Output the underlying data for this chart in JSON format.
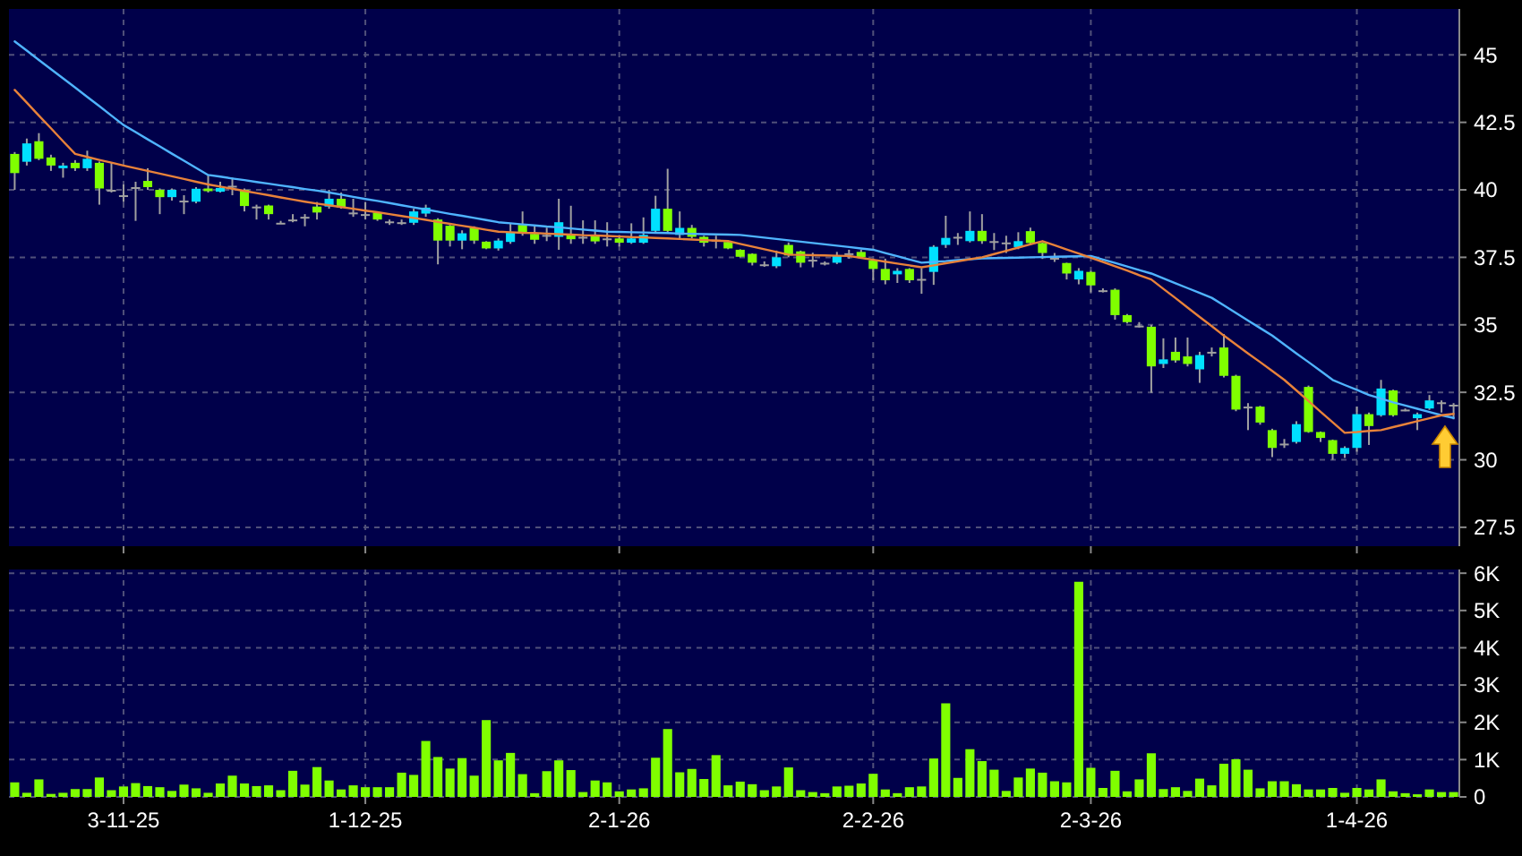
{
  "chart_data": [
    {
      "type": "candlestick",
      "tick_labels": "y",
      "grid": true,
      "ylim": [
        26.8,
        46.7
      ],
      "yticks": [
        27.5,
        30,
        32.5,
        35,
        37.5,
        40,
        42.5,
        45
      ],
      "categories": [
        null,
        null,
        null,
        null,
        null,
        null,
        null,
        null,
        null,
        null,
        null,
        null,
        null,
        null,
        null,
        null,
        null,
        null,
        null,
        null,
        null,
        null,
        null,
        null,
        null,
        null,
        null,
        null,
        null,
        null,
        null,
        null,
        null,
        null,
        null,
        null,
        null,
        null,
        null,
        null,
        null,
        null,
        null,
        null,
        null,
        null,
        null,
        null,
        null,
        null,
        null,
        null,
        null,
        null,
        null,
        null,
        null,
        null,
        null,
        null,
        null,
        null,
        null,
        null,
        null,
        null,
        null,
        null,
        null,
        null,
        null,
        null,
        null,
        null,
        null,
        null,
        null,
        null,
        null,
        null,
        null,
        null,
        null,
        null,
        null,
        null,
        null,
        null,
        null,
        null,
        null,
        null,
        null,
        null,
        null,
        null,
        null,
        null,
        null,
        null,
        null,
        null,
        null,
        null,
        null,
        null,
        null,
        null,
        null,
        null,
        null,
        null,
        null,
        null,
        null,
        null,
        null,
        null,
        null,
        null
      ],
      "ohlc": [
        [
          41.33,
          41.4,
          40.0,
          40.62
        ],
        [
          41.04,
          41.9,
          40.9,
          41.72
        ],
        [
          41.8,
          42.1,
          41.1,
          41.15
        ],
        [
          41.2,
          41.3,
          40.7,
          40.9
        ],
        [
          40.8,
          41.0,
          40.45,
          40.9
        ],
        [
          41.0,
          41.1,
          40.7,
          40.8
        ],
        [
          40.8,
          41.45,
          40.7,
          41.15
        ],
        [
          41.0,
          41.05,
          39.45,
          40.05
        ],
        [
          40.0,
          41.0,
          39.9,
          40.0
        ],
        [
          39.8,
          40.2,
          39.55,
          39.8
        ],
        [
          40.1,
          40.3,
          38.85,
          40.1
        ],
        [
          40.33,
          40.8,
          40.0,
          40.1
        ],
        [
          40.0,
          40.05,
          39.1,
          39.73
        ],
        [
          39.73,
          40.05,
          39.6,
          40.0
        ],
        [
          39.6,
          39.8,
          39.1,
          39.6
        ],
        [
          39.56,
          40.1,
          39.5,
          40.04
        ],
        [
          40.05,
          40.55,
          39.9,
          39.95
        ],
        [
          39.93,
          40.3,
          39.9,
          40.07
        ],
        [
          40.15,
          40.45,
          39.8,
          40.15
        ],
        [
          40.0,
          40.05,
          39.2,
          39.4
        ],
        [
          39.38,
          39.45,
          38.9,
          39.38
        ],
        [
          39.42,
          39.45,
          38.9,
          39.1
        ],
        [
          38.78,
          38.85,
          38.75,
          38.78
        ],
        [
          38.9,
          39.1,
          38.8,
          38.9
        ],
        [
          39.0,
          39.1,
          38.65,
          39.0
        ],
        [
          39.38,
          39.55,
          38.9,
          39.16
        ],
        [
          39.38,
          40.0,
          39.3,
          39.67
        ],
        [
          39.67,
          39.9,
          39.3,
          39.34
        ],
        [
          39.16,
          39.67,
          39.0,
          39.16
        ],
        [
          39.1,
          39.55,
          38.9,
          39.1
        ],
        [
          39.16,
          39.2,
          38.85,
          38.9
        ],
        [
          38.83,
          38.9,
          38.7,
          38.83
        ],
        [
          38.8,
          38.9,
          38.7,
          38.8
        ],
        [
          38.78,
          39.3,
          38.7,
          39.2
        ],
        [
          39.12,
          39.45,
          39.0,
          39.34
        ],
        [
          38.9,
          38.95,
          37.24,
          38.12
        ],
        [
          38.67,
          38.7,
          37.9,
          38.12
        ],
        [
          38.12,
          38.5,
          37.8,
          38.39
        ],
        [
          38.6,
          38.65,
          38.0,
          38.12
        ],
        [
          38.08,
          38.1,
          37.8,
          37.83
        ],
        [
          37.83,
          38.2,
          37.75,
          38.12
        ],
        [
          38.07,
          38.76,
          38.0,
          38.43
        ],
        [
          38.7,
          39.2,
          38.3,
          38.43
        ],
        [
          38.37,
          38.65,
          38.0,
          38.15
        ],
        [
          38.33,
          38.6,
          38.1,
          38.33
        ],
        [
          38.26,
          39.67,
          37.78,
          38.8
        ],
        [
          38.33,
          39.41,
          38.0,
          38.17
        ],
        [
          38.26,
          38.87,
          38.0,
          38.26
        ],
        [
          38.28,
          38.87,
          38.0,
          38.09
        ],
        [
          38.2,
          38.8,
          37.9,
          38.2
        ],
        [
          38.2,
          38.3,
          37.9,
          38.04
        ],
        [
          38.04,
          38.76,
          38.0,
          38.2
        ],
        [
          38.04,
          38.98,
          38.0,
          38.33
        ],
        [
          38.48,
          39.78,
          38.4,
          39.3
        ],
        [
          39.3,
          40.78,
          38.4,
          38.48
        ],
        [
          38.33,
          39.2,
          38.2,
          38.59
        ],
        [
          38.59,
          38.7,
          38.2,
          38.26
        ],
        [
          38.26,
          38.3,
          37.9,
          38.04
        ],
        [
          38.15,
          38.3,
          37.83,
          38.15
        ],
        [
          38.07,
          38.1,
          37.8,
          37.83
        ],
        [
          37.78,
          37.8,
          37.5,
          37.52
        ],
        [
          37.63,
          37.65,
          37.2,
          37.3
        ],
        [
          37.24,
          37.35,
          37.15,
          37.24
        ],
        [
          37.17,
          37.75,
          37.1,
          37.5
        ],
        [
          37.96,
          38.05,
          37.5,
          37.57
        ],
        [
          37.72,
          37.75,
          37.13,
          37.3
        ],
        [
          37.41,
          37.67,
          37.13,
          37.41
        ],
        [
          37.3,
          37.35,
          37.2,
          37.3
        ],
        [
          37.3,
          37.7,
          37.25,
          37.57
        ],
        [
          37.65,
          37.78,
          37.45,
          37.65
        ],
        [
          37.7,
          37.78,
          37.45,
          37.5
        ],
        [
          37.39,
          37.45,
          36.65,
          37.07
        ],
        [
          37.07,
          37.45,
          36.5,
          36.65
        ],
        [
          36.87,
          37.1,
          36.55,
          37.0
        ],
        [
          37.07,
          37.1,
          36.55,
          36.65
        ],
        [
          36.7,
          37.1,
          36.15,
          36.7
        ],
        [
          36.96,
          37.95,
          36.48,
          37.89
        ],
        [
          37.96,
          39.04,
          37.85,
          38.22
        ],
        [
          38.26,
          38.4,
          37.96,
          38.26
        ],
        [
          38.1,
          39.2,
          38.05,
          38.48
        ],
        [
          38.48,
          39.1,
          38.0,
          38.1
        ],
        [
          38.1,
          38.4,
          37.77,
          38.1
        ],
        [
          38.05,
          38.3,
          37.66,
          38.05
        ],
        [
          37.88,
          38.43,
          37.8,
          38.1
        ],
        [
          38.47,
          38.6,
          37.95,
          38.03
        ],
        [
          38.03,
          38.05,
          37.44,
          37.66
        ],
        [
          37.48,
          37.66,
          37.33,
          37.48
        ],
        [
          37.29,
          37.3,
          36.68,
          36.9
        ],
        [
          36.68,
          37.1,
          36.5,
          37.0
        ],
        [
          36.96,
          37.0,
          36.2,
          36.46
        ],
        [
          36.28,
          36.35,
          36.2,
          36.28
        ],
        [
          36.3,
          36.35,
          35.19,
          35.36
        ],
        [
          35.36,
          35.4,
          35.05,
          35.1
        ],
        [
          34.97,
          35.1,
          34.9,
          34.97
        ],
        [
          34.93,
          35.0,
          32.48,
          33.46
        ],
        [
          33.55,
          34.5,
          33.4,
          33.72
        ],
        [
          34.0,
          34.53,
          33.6,
          33.68
        ],
        [
          33.83,
          34.53,
          33.46,
          33.55
        ],
        [
          33.35,
          34.0,
          32.85,
          33.88
        ],
        [
          34.0,
          34.16,
          33.83,
          34.0
        ],
        [
          34.16,
          34.66,
          33.05,
          33.11
        ],
        [
          33.11,
          33.15,
          31.8,
          31.86
        ],
        [
          31.97,
          32.1,
          31.1,
          31.97
        ],
        [
          31.97,
          32.0,
          31.3,
          31.38
        ],
        [
          31.1,
          31.15,
          30.1,
          30.44
        ],
        [
          30.6,
          30.77,
          30.44,
          30.6
        ],
        [
          30.66,
          31.43,
          30.6,
          31.32
        ],
        [
          32.7,
          32.75,
          31.0,
          31.03
        ],
        [
          31.03,
          31.05,
          30.66,
          30.81
        ],
        [
          30.73,
          30.75,
          30.0,
          30.22
        ],
        [
          30.22,
          30.5,
          30.07,
          30.44
        ],
        [
          30.44,
          31.97,
          30.3,
          31.69
        ],
        [
          31.69,
          31.75,
          30.55,
          31.25
        ],
        [
          31.65,
          32.96,
          31.6,
          32.64
        ],
        [
          32.57,
          32.6,
          31.6,
          31.65
        ],
        [
          31.86,
          31.9,
          31.8,
          31.86
        ],
        [
          31.54,
          31.75,
          31.1,
          31.69
        ],
        [
          31.9,
          32.4,
          31.85,
          32.2
        ],
        [
          32.13,
          32.2,
          31.75,
          32.13
        ],
        [
          32.04,
          32.1,
          31.5,
          32.04
        ]
      ],
      "colors": [
        "#80ff00",
        "#00e0ff",
        "#80ff00",
        "#80ff00",
        "#00e0ff",
        "#80ff00",
        "#00e0ff",
        "#80ff00",
        "#a0a0a0",
        "#a0a0a0",
        "#a0a0a0",
        "#80ff00",
        "#80ff00",
        "#00e0ff",
        "#a0a0a0",
        "#00e0ff",
        "#80ff00",
        "#00e0ff",
        "#a0a0a0",
        "#80ff00",
        "#a0a0a0",
        "#80ff00",
        "#a0a0a0",
        "#a0a0a0",
        "#a0a0a0",
        "#80ff00",
        "#00e0ff",
        "#80ff00",
        "#a0a0a0",
        "#a0a0a0",
        "#80ff00",
        "#a0a0a0",
        "#a0a0a0",
        "#00e0ff",
        "#00e0ff",
        "#80ff00",
        "#80ff00",
        "#00e0ff",
        "#80ff00",
        "#80ff00",
        "#00e0ff",
        "#00e0ff",
        "#80ff00",
        "#80ff00",
        "#a0a0a0",
        "#00e0ff",
        "#80ff00",
        "#a0a0a0",
        "#80ff00",
        "#a0a0a0",
        "#80ff00",
        "#00e0ff",
        "#00e0ff",
        "#00e0ff",
        "#80ff00",
        "#00e0ff",
        "#80ff00",
        "#80ff00",
        "#a0a0a0",
        "#80ff00",
        "#80ff00",
        "#80ff00",
        "#a0a0a0",
        "#00e0ff",
        "#80ff00",
        "#80ff00",
        "#a0a0a0",
        "#a0a0a0",
        "#00e0ff",
        "#a0a0a0",
        "#80ff00",
        "#80ff00",
        "#80ff00",
        "#00e0ff",
        "#80ff00",
        "#a0a0a0",
        "#00e0ff",
        "#00e0ff",
        "#a0a0a0",
        "#00e0ff",
        "#80ff00",
        "#a0a0a0",
        "#a0a0a0",
        "#00e0ff",
        "#80ff00",
        "#80ff00",
        "#a0a0a0",
        "#80ff00",
        "#00e0ff",
        "#80ff00",
        "#a0a0a0",
        "#80ff00",
        "#80ff00",
        "#a0a0a0",
        "#80ff00",
        "#00e0ff",
        "#80ff00",
        "#80ff00",
        "#00e0ff",
        "#a0a0a0",
        "#80ff00",
        "#80ff00",
        "#a0a0a0",
        "#80ff00",
        "#80ff00",
        "#a0a0a0",
        "#00e0ff",
        "#80ff00",
        "#80ff00",
        "#80ff00",
        "#00e0ff",
        "#00e0ff",
        "#80ff00",
        "#00e0ff",
        "#80ff00",
        "#a0a0a0",
        "#00e0ff",
        "#00e0ff",
        "#a0a0a0",
        "#a0a0a0"
      ],
      "series": [
        {
          "type": "line",
          "color": "#4fb4ff",
          "values": [
            45.5,
            45.16,
            44.81,
            44.47,
            44.13,
            43.79,
            43.44,
            43.1,
            42.75,
            42.4,
            42.14,
            41.87,
            41.61,
            41.34,
            41.08,
            40.81,
            40.55,
            40.49,
            40.42,
            40.36,
            40.29,
            40.23,
            40.16,
            40.1,
            40.03,
            39.97,
            39.9,
            39.82,
            39.74,
            39.66,
            39.59,
            39.51,
            39.43,
            39.35,
            39.27,
            39.19,
            39.11,
            39.04,
            38.96,
            38.88,
            38.8,
            38.76,
            38.72,
            38.68,
            38.64,
            38.61,
            38.57,
            38.53,
            38.49,
            38.45,
            38.44,
            38.43,
            38.42,
            38.41,
            38.4,
            38.38,
            38.37,
            38.36,
            38.35,
            38.34,
            38.33,
            38.28,
            38.23,
            38.18,
            38.13,
            38.08,
            38.03,
            37.98,
            37.93,
            37.88,
            37.83,
            37.78,
            37.66,
            37.54,
            37.42,
            37.3,
            37.33,
            37.36,
            37.4,
            37.43,
            37.46,
            37.47,
            37.48,
            37.49,
            37.5,
            37.51,
            37.52,
            37.53,
            37.54,
            37.55,
            37.42,
            37.29,
            37.16,
            37.03,
            36.9,
            36.72,
            36.54,
            36.36,
            36.18,
            36.0,
            35.72,
            35.44,
            35.16,
            34.88,
            34.6,
            34.27,
            33.94,
            33.62,
            33.29,
            32.96,
            32.77,
            32.59,
            32.4,
            32.27,
            32.13,
            32.01,
            31.89,
            31.77,
            31.65,
            31.55
          ]
        },
        {
          "type": "line",
          "color": "#e8823a",
          "values": [
            43.7,
            43.23,
            42.75,
            42.28,
            41.8,
            41.33,
            41.22,
            41.11,
            41.01,
            40.9,
            40.8,
            40.7,
            40.6,
            40.5,
            40.4,
            40.3,
            40.2,
            40.12,
            40.04,
            39.96,
            39.88,
            39.8,
            39.72,
            39.64,
            39.56,
            39.49,
            39.43,
            39.36,
            39.3,
            39.23,
            39.17,
            39.1,
            39.03,
            38.96,
            38.89,
            38.81,
            38.74,
            38.67,
            38.6,
            38.52,
            38.45,
            38.43,
            38.41,
            38.4,
            38.38,
            38.36,
            38.34,
            38.32,
            38.31,
            38.29,
            38.27,
            38.25,
            38.24,
            38.22,
            38.2,
            38.18,
            38.16,
            38.14,
            38.12,
            38.1,
            38.0,
            37.9,
            37.8,
            37.7,
            37.6,
            37.59,
            37.58,
            37.57,
            37.56,
            37.55,
            37.48,
            37.41,
            37.34,
            37.27,
            37.2,
            37.13,
            37.2,
            37.28,
            37.35,
            37.43,
            37.5,
            37.62,
            37.74,
            37.86,
            37.98,
            38.1,
            37.95,
            37.79,
            37.64,
            37.48,
            37.33,
            37.17,
            37.01,
            36.84,
            36.68,
            36.33,
            35.99,
            35.64,
            35.29,
            34.95,
            34.6,
            34.27,
            33.94,
            33.62,
            33.29,
            32.96,
            32.57,
            32.18,
            31.78,
            31.39,
            31.0,
            31.03,
            31.07,
            31.1,
            31.21,
            31.32,
            31.43,
            31.54,
            31.65,
            31.7
          ]
        }
      ]
    },
    {
      "type": "bar",
      "grid": true,
      "color": "#80ff00",
      "ylim": [
        0,
        6100
      ],
      "yticks": [
        0,
        {
          "value": 1000,
          "label": "1K"
        },
        {
          "value": 2000,
          "label": "2K"
        },
        {
          "value": 3000,
          "label": "3K"
        },
        {
          "value": 4000,
          "label": "4K"
        },
        {
          "value": 5000,
          "label": "5K"
        },
        {
          "value": 6000,
          "label": "6K"
        }
      ],
      "categories": [
        null,
        null,
        null,
        null,
        null,
        null,
        null,
        null,
        null,
        "3-11-25",
        null,
        null,
        null,
        null,
        null,
        null,
        null,
        null,
        null,
        null,
        null,
        null,
        null,
        null,
        null,
        null,
        null,
        null,
        null,
        "1-12-25",
        null,
        null,
        null,
        null,
        null,
        null,
        null,
        null,
        null,
        null,
        null,
        null,
        null,
        null,
        null,
        null,
        null,
        null,
        null,
        null,
        "2-1-26",
        null,
        null,
        null,
        null,
        null,
        null,
        null,
        null,
        null,
        null,
        null,
        null,
        null,
        null,
        null,
        null,
        null,
        null,
        null,
        null,
        "2-2-26",
        null,
        null,
        null,
        null,
        null,
        null,
        null,
        null,
        null,
        null,
        null,
        null,
        null,
        null,
        null,
        null,
        null,
        "2-3-26",
        null,
        null,
        null,
        null,
        null,
        null,
        null,
        null,
        null,
        null,
        null,
        null,
        null,
        null,
        null,
        null,
        null,
        null,
        null,
        null,
        null,
        "1-4-26",
        null,
        null,
        null,
        null,
        null,
        null,
        null,
        null
      ],
      "values": [
        390,
        110,
        470,
        80,
        110,
        210,
        210,
        520,
        180,
        280,
        370,
        290,
        260,
        160,
        330,
        230,
        110,
        360,
        570,
        360,
        290,
        310,
        180,
        700,
        330,
        800,
        440,
        200,
        310,
        260,
        260,
        260,
        650,
        590,
        1500,
        1070,
        760,
        1040,
        570,
        2060,
        980,
        1180,
        610,
        100,
        690,
        980,
        720,
        130,
        440,
        390,
        150,
        200,
        230,
        1050,
        1820,
        660,
        750,
        480,
        1120,
        310,
        410,
        340,
        180,
        280,
        790,
        180,
        130,
        100,
        280,
        300,
        360,
        620,
        200,
        100,
        260,
        280,
        1030,
        2510,
        510,
        1280,
        960,
        730,
        160,
        520,
        760,
        650,
        420,
        390,
        5770,
        780,
        240,
        700,
        150,
        470,
        1170,
        210,
        260,
        160,
        490,
        310,
        890,
        1010,
        730,
        230,
        420,
        420,
        340,
        200,
        200,
        240,
        110,
        240,
        200,
        470,
        150,
        100,
        70,
        200,
        130,
        130
      ]
    }
  ]
}
